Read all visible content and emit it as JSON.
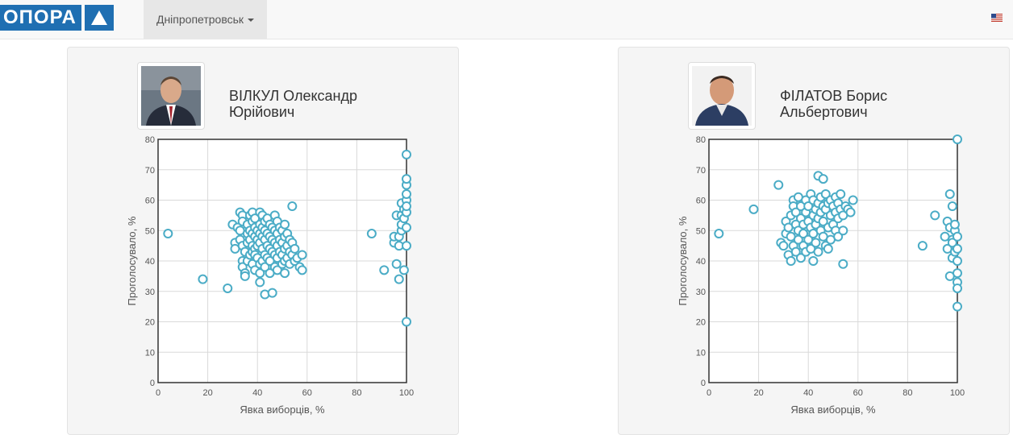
{
  "nav": {
    "logo_text": "ОПОРА",
    "city_label": "Дніпропетровськ",
    "brand_color": "#1f6fb2"
  },
  "candidates": [
    {
      "name_line1": "ВІЛКУЛ Олександр",
      "name_line2": "Юрійович",
      "photo": "candidate-photo-suit-red-tie",
      "chart_data": {
        "type": "scatter",
        "xlabel": "Явка виборців, %",
        "ylabel": "Проголосувало, %",
        "xlim": [
          0,
          100
        ],
        "ylim": [
          0,
          80
        ],
        "xticks": [
          "0",
          "20",
          "40",
          "60",
          "80",
          "100"
        ],
        "yticks": [
          "0",
          "10",
          "20",
          "30",
          "40",
          "50",
          "60",
          "70",
          "80"
        ],
        "grid": true,
        "marker_color": "#4bacc6",
        "points": [
          [
            4,
            49
          ],
          [
            18,
            34
          ],
          [
            28,
            31
          ],
          [
            30,
            52
          ],
          [
            31,
            46
          ],
          [
            31,
            44
          ],
          [
            32,
            51
          ],
          [
            33,
            50
          ],
          [
            33,
            47
          ],
          [
            33,
            56
          ],
          [
            34,
            55
          ],
          [
            34,
            53
          ],
          [
            34,
            45
          ],
          [
            34,
            40
          ],
          [
            34,
            38
          ],
          [
            35,
            43
          ],
          [
            35,
            36
          ],
          [
            35,
            35
          ],
          [
            36,
            52
          ],
          [
            36,
            49
          ],
          [
            36,
            46
          ],
          [
            36,
            40
          ],
          [
            37,
            55
          ],
          [
            37,
            50
          ],
          [
            37,
            47
          ],
          [
            37,
            42
          ],
          [
            38,
            56
          ],
          [
            38,
            53
          ],
          [
            38,
            49
          ],
          [
            38,
            45
          ],
          [
            38,
            43
          ],
          [
            38,
            39
          ],
          [
            39,
            54
          ],
          [
            39,
            51
          ],
          [
            39,
            48
          ],
          [
            39,
            44
          ],
          [
            39,
            42
          ],
          [
            39,
            37
          ],
          [
            40,
            50
          ],
          [
            40,
            47
          ],
          [
            40,
            45
          ],
          [
            40,
            41
          ],
          [
            41,
            56
          ],
          [
            41,
            52
          ],
          [
            41,
            49
          ],
          [
            41,
            46
          ],
          [
            41,
            39
          ],
          [
            41,
            33
          ],
          [
            41,
            36
          ],
          [
            42,
            55
          ],
          [
            42,
            51
          ],
          [
            42,
            48
          ],
          [
            42,
            44
          ],
          [
            42,
            40
          ],
          [
            43,
            53
          ],
          [
            43,
            50
          ],
          [
            43,
            47
          ],
          [
            43,
            42
          ],
          [
            43,
            38
          ],
          [
            43,
            29
          ],
          [
            44,
            54
          ],
          [
            44,
            49
          ],
          [
            44,
            45
          ],
          [
            44,
            41
          ],
          [
            45,
            52
          ],
          [
            45,
            48
          ],
          [
            45,
            44
          ],
          [
            45,
            40
          ],
          [
            45,
            36
          ],
          [
            46,
            51
          ],
          [
            46,
            47
          ],
          [
            46,
            43
          ],
          [
            46,
            29.5
          ],
          [
            47,
            55
          ],
          [
            47,
            50
          ],
          [
            47,
            46
          ],
          [
            47,
            42
          ],
          [
            47,
            38
          ],
          [
            48,
            53
          ],
          [
            48,
            49
          ],
          [
            48,
            45
          ],
          [
            48,
            41
          ],
          [
            48,
            37
          ],
          [
            49,
            51
          ],
          [
            49,
            47
          ],
          [
            49,
            43
          ],
          [
            50,
            50
          ],
          [
            50,
            46
          ],
          [
            50,
            42
          ],
          [
            50,
            39
          ],
          [
            51,
            52
          ],
          [
            51,
            48
          ],
          [
            51,
            44
          ],
          [
            51,
            40
          ],
          [
            51,
            36
          ],
          [
            52,
            49
          ],
          [
            52,
            45
          ],
          [
            52,
            41
          ],
          [
            53,
            47
          ],
          [
            53,
            43
          ],
          [
            53,
            39
          ],
          [
            54,
            58
          ],
          [
            54,
            46
          ],
          [
            54,
            42
          ],
          [
            55,
            44
          ],
          [
            55,
            40
          ],
          [
            56,
            41
          ],
          [
            57,
            38
          ],
          [
            58,
            42
          ],
          [
            58,
            37
          ],
          [
            86,
            49
          ],
          [
            91,
            37
          ],
          [
            95,
            46
          ],
          [
            95,
            48
          ],
          [
            96,
            39
          ],
          [
            96,
            55
          ],
          [
            97,
            34
          ],
          [
            97,
            45
          ],
          [
            97,
            48
          ],
          [
            98,
            50
          ],
          [
            98,
            52
          ],
          [
            98,
            55
          ],
          [
            98,
            59
          ],
          [
            99,
            54
          ],
          [
            99,
            57
          ],
          [
            99,
            37
          ],
          [
            100,
            56
          ],
          [
            100,
            45
          ],
          [
            100,
            51
          ],
          [
            100,
            60
          ],
          [
            100,
            58
          ],
          [
            100,
            62
          ],
          [
            100,
            65
          ],
          [
            100,
            67
          ],
          [
            100,
            75
          ],
          [
            100,
            20
          ]
        ]
      }
    },
    {
      "name_line1": "ФІЛАТОВ Борис",
      "name_line2": "Альбертович",
      "photo": "candidate-photo-bald-man",
      "chart_data": {
        "type": "scatter",
        "xlabel": "Явка виборців, %",
        "ylabel": "Проголосувало, %",
        "xlim": [
          0,
          100
        ],
        "ylim": [
          0,
          80
        ],
        "xticks": [
          "0",
          "20",
          "40",
          "60",
          "80",
          "100"
        ],
        "yticks": [
          "0",
          "10",
          "20",
          "30",
          "40",
          "50",
          "60",
          "70",
          "80"
        ],
        "grid": true,
        "marker_color": "#4bacc6",
        "points": [
          [
            4,
            49
          ],
          [
            18,
            57
          ],
          [
            28,
            65
          ],
          [
            29,
            46
          ],
          [
            30,
            45
          ],
          [
            31,
            53
          ],
          [
            31,
            49
          ],
          [
            32,
            42
          ],
          [
            32,
            51
          ],
          [
            33,
            40
          ],
          [
            33,
            48
          ],
          [
            33,
            55
          ],
          [
            34,
            60
          ],
          [
            34,
            45
          ],
          [
            34,
            58
          ],
          [
            35,
            52
          ],
          [
            35,
            43
          ],
          [
            35,
            56
          ],
          [
            36,
            50
          ],
          [
            36,
            47
          ],
          [
            36,
            61
          ],
          [
            37,
            54
          ],
          [
            37,
            41
          ],
          [
            37,
            58
          ],
          [
            38,
            52
          ],
          [
            38,
            45
          ],
          [
            38,
            49
          ],
          [
            39,
            56
          ],
          [
            39,
            60
          ],
          [
            39,
            43
          ],
          [
            40,
            53
          ],
          [
            40,
            47
          ],
          [
            40,
            58
          ],
          [
            41,
            51
          ],
          [
            41,
            62
          ],
          [
            41,
            44
          ],
          [
            42,
            55
          ],
          [
            42,
            49
          ],
          [
            42,
            40
          ],
          [
            42,
            60
          ],
          [
            43,
            57
          ],
          [
            43,
            52
          ],
          [
            43,
            46
          ],
          [
            44,
            68
          ],
          [
            44,
            59
          ],
          [
            44,
            54
          ],
          [
            44,
            43
          ],
          [
            45,
            61
          ],
          [
            45,
            50
          ],
          [
            45,
            56
          ],
          [
            46,
            67
          ],
          [
            46,
            58
          ],
          [
            46,
            48
          ],
          [
            46,
            53
          ],
          [
            47,
            62
          ],
          [
            47,
            45
          ],
          [
            47,
            57
          ],
          [
            48,
            59
          ],
          [
            48,
            51
          ],
          [
            48,
            44
          ],
          [
            49,
            60
          ],
          [
            49,
            55
          ],
          [
            49,
            47
          ],
          [
            50,
            58
          ],
          [
            50,
            52
          ],
          [
            51,
            61
          ],
          [
            51,
            56
          ],
          [
            51,
            50
          ],
          [
            52,
            59
          ],
          [
            52,
            54
          ],
          [
            52,
            48
          ],
          [
            53,
            57
          ],
          [
            53,
            62
          ],
          [
            54,
            55
          ],
          [
            54,
            39
          ],
          [
            54,
            50
          ],
          [
            55,
            58
          ],
          [
            56,
            57
          ],
          [
            57,
            56
          ],
          [
            58,
            60
          ],
          [
            86,
            45
          ],
          [
            91,
            55
          ],
          [
            95,
            48
          ],
          [
            96,
            53
          ],
          [
            96,
            44
          ],
          [
            97,
            62
          ],
          [
            97,
            51
          ],
          [
            97,
            35
          ],
          [
            98,
            58
          ],
          [
            98,
            47
          ],
          [
            98,
            41
          ],
          [
            98,
            46
          ],
          [
            99,
            50
          ],
          [
            99,
            43
          ],
          [
            99,
            52
          ],
          [
            100,
            36
          ],
          [
            100,
            33
          ],
          [
            100,
            44
          ],
          [
            100,
            48
          ],
          [
            100,
            40
          ],
          [
            100,
            31
          ],
          [
            100,
            25
          ],
          [
            100,
            80
          ]
        ]
      }
    }
  ]
}
